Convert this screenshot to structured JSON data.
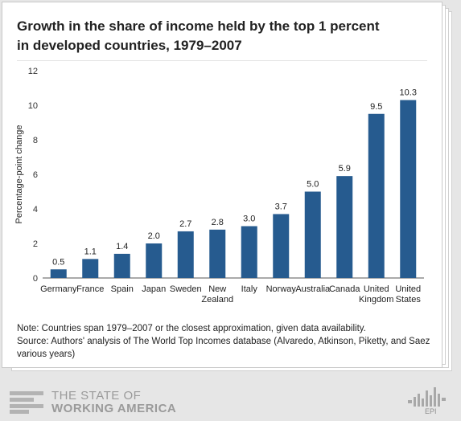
{
  "title": "Growth in the share of income held by the top 1 percent in developed countries, 1979–2007",
  "note_lines": [
    "Note: Countries span 1979–2007 or the closest approximation, given data availability.",
    "Source: Authors' analysis of The World  Top Incomes database (Alvaredo, Atkinson, Piketty, and Saez various years)"
  ],
  "footer": {
    "brand_line1": "THE STATE OF",
    "brand_line2": "WORKING AMERICA",
    "epi": "EPI"
  },
  "colors": {
    "bar": "#265b8f",
    "axis": "#555555"
  },
  "chart_data": {
    "type": "bar",
    "title": "Growth in the share of income held by the top 1 percent in developed countries, 1979–2007",
    "xlabel": "",
    "ylabel": "Percentage-point change",
    "ylim": [
      0,
      12
    ],
    "yticks": [
      0,
      2,
      4,
      6,
      8,
      10,
      12
    ],
    "grid": false,
    "categories": [
      [
        "Germany"
      ],
      [
        "France"
      ],
      [
        "Spain"
      ],
      [
        "Japan"
      ],
      [
        "Sweden"
      ],
      [
        "New",
        "Zealand"
      ],
      [
        "Italy"
      ],
      [
        "Norway"
      ],
      [
        "Australia"
      ],
      [
        "Canada"
      ],
      [
        "United",
        "Kingdom"
      ],
      [
        "United",
        "States"
      ]
    ],
    "values": [
      0.5,
      1.1,
      1.4,
      2.0,
      2.7,
      2.8,
      3.0,
      3.7,
      5.0,
      5.9,
      9.5,
      10.3
    ],
    "data_labels": [
      "0.5",
      "1.1",
      "1.4",
      "2.0",
      "2.7",
      "2.8",
      "3.0",
      "3.7",
      "5.0",
      "5.9",
      "9.5",
      "10.3"
    ]
  }
}
